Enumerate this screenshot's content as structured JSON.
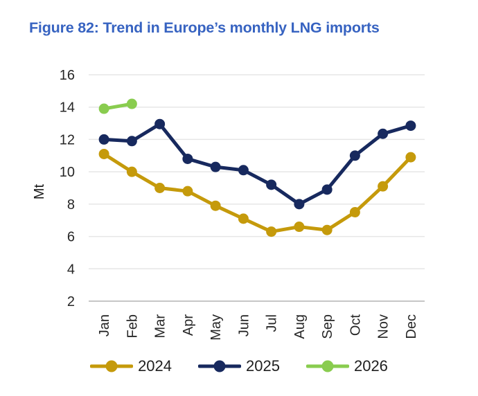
{
  "title": "Figure 82: Trend in Europe’s monthly LNG imports",
  "styles": {
    "title_color": "#3763C1",
    "grid_color": "#E6E6E6",
    "axis_line_color": "#C6C6C6",
    "tick_color": "#262626",
    "background": "#FFFFFF"
  },
  "chart_data": {
    "type": "line",
    "title": "Figure 82: Trend in Europe’s monthly LNG imports",
    "x": [
      "Jan",
      "Feb",
      "Mar",
      "Apr",
      "May",
      "Jun",
      "Jul",
      "Aug",
      "Sep",
      "Oct",
      "Nov",
      "Dec"
    ],
    "series": [
      {
        "name": "2024",
        "color": "#C59A0B",
        "values": [
          11.1,
          10.0,
          9.0,
          8.8,
          7.9,
          7.1,
          6.3,
          6.6,
          6.4,
          7.5,
          9.1,
          10.9
        ]
      },
      {
        "name": "2025",
        "color": "#17295E",
        "values": [
          12.0,
          11.9,
          12.95,
          10.8,
          10.3,
          10.1,
          9.2,
          8.0,
          8.9,
          11.0,
          12.35,
          12.85
        ]
      },
      {
        "name": "2026",
        "color": "#89CC4F",
        "values": [
          13.9,
          14.2
        ]
      }
    ],
    "xlabel": "",
    "ylabel": "Mt",
    "ylim": [
      2,
      16
    ],
    "yticks": [
      2,
      4,
      6,
      8,
      10,
      12,
      14,
      16
    ],
    "grid": true,
    "legend_position": "bottom",
    "marker": "circle",
    "x_tick_rotation": -90
  }
}
